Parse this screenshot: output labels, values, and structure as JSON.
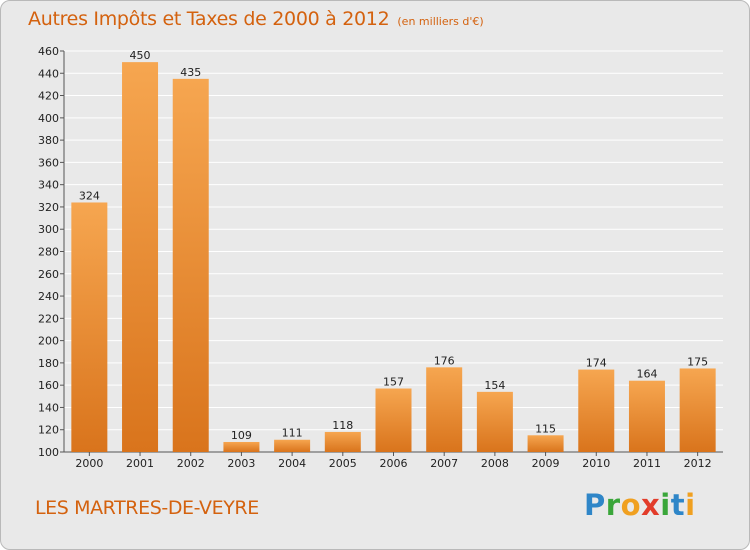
{
  "title": "Autres Impôts et Taxes de 2000 à 2012",
  "subtitle": "(en milliers d'€)",
  "commune": "LES MARTRES-DE-VEYRE",
  "brand": {
    "letters": [
      {
        "ch": "P",
        "color": "#2f86c8"
      },
      {
        "ch": "r",
        "color": "#3aa63a"
      },
      {
        "ch": "o",
        "color": "#f0a020"
      },
      {
        "ch": "x",
        "color": "#e23c2a"
      },
      {
        "ch": "i",
        "color": "#3aa63a"
      },
      {
        "ch": "t",
        "color": "#2f86c8"
      },
      {
        "ch": "i",
        "color": "#f0a020"
      }
    ]
  },
  "colors": {
    "bar_light": "#f6a650",
    "bar_dark": "#d9741c",
    "text_accent": "#d4620f",
    "grid": "#ffffff"
  },
  "chart_data": {
    "type": "bar",
    "categories": [
      "2000",
      "2001",
      "2002",
      "2003",
      "2004",
      "2005",
      "2006",
      "2007",
      "2008",
      "2009",
      "2010",
      "2011",
      "2012"
    ],
    "values": [
      324,
      450,
      435,
      109,
      111,
      118,
      157,
      176,
      154,
      115,
      174,
      164,
      175
    ],
    "ylim": [
      100,
      460
    ],
    "yticks": [
      100,
      120,
      140,
      160,
      180,
      200,
      220,
      240,
      260,
      280,
      300,
      320,
      340,
      360,
      380,
      400,
      420,
      440,
      460
    ],
    "grid": true
  }
}
